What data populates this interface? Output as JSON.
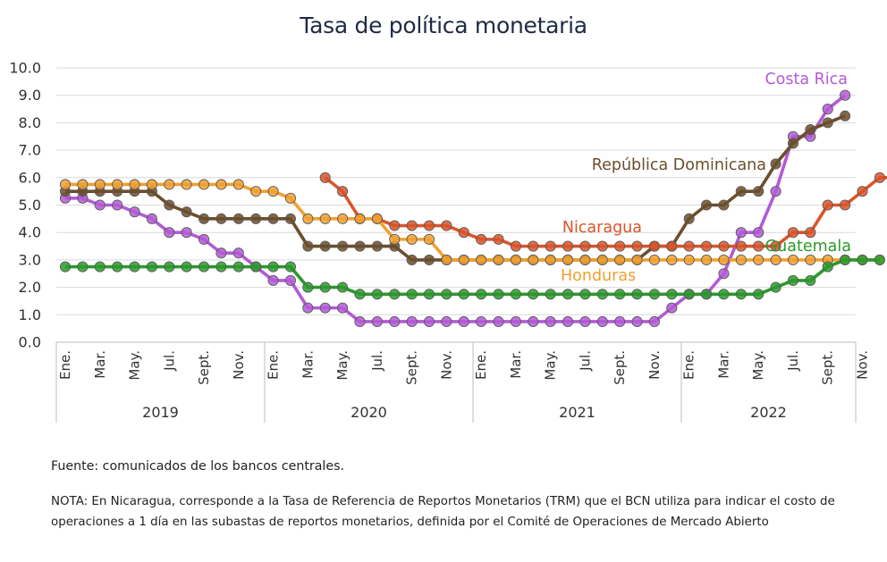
{
  "chart_data": {
    "type": "line",
    "title": "Tasa de política monetaria",
    "y_ticks": [
      "0.0",
      "1.0",
      "2.0",
      "3.0",
      "4.0",
      "5.0",
      "6.0",
      "7.0",
      "8.0",
      "9.0",
      "10.0"
    ],
    "ylim": [
      0,
      10
    ],
    "grid": true,
    "x_month_labels": [
      "Ene.",
      "Mar.",
      "May.",
      "Jul.",
      "Sept.",
      "Nov."
    ],
    "years": [
      "2019",
      "2020",
      "2021",
      "2022"
    ],
    "x_start": "2019-01",
    "x_end": "2022-12",
    "series": [
      {
        "name": "Costa Rica",
        "color": "#b35ad6",
        "label_color": "#b35ad6",
        "start": "2019-01",
        "values": [
          5.25,
          5.25,
          5.0,
          5.0,
          4.75,
          4.5,
          4.0,
          4.0,
          3.75,
          3.25,
          3.25,
          2.75,
          2.25,
          2.25,
          1.25,
          1.25,
          1.25,
          0.75,
          0.75,
          0.75,
          0.75,
          0.75,
          0.75,
          0.75,
          0.75,
          0.75,
          0.75,
          0.75,
          0.75,
          0.75,
          0.75,
          0.75,
          0.75,
          0.75,
          0.75,
          1.25,
          1.75,
          1.75,
          2.5,
          4.0,
          4.0,
          5.5,
          7.5,
          7.5,
          8.5,
          9.0
        ]
      },
      {
        "name": "República Dominicana",
        "color": "#6b4e2a",
        "label_color": "#6b4e2a",
        "start": "2019-01",
        "values": [
          5.5,
          5.5,
          5.5,
          5.5,
          5.5,
          5.5,
          5.0,
          4.75,
          4.5,
          4.5,
          4.5,
          4.5,
          4.5,
          4.5,
          3.5,
          3.5,
          3.5,
          3.5,
          3.5,
          3.5,
          3.0,
          3.0,
          3.0,
          3.0,
          3.0,
          3.0,
          3.0,
          3.0,
          3.0,
          3.0,
          3.0,
          3.0,
          3.0,
          3.0,
          3.5,
          3.5,
          4.5,
          5.0,
          5.0,
          5.5,
          5.5,
          6.5,
          7.25,
          7.75,
          8.0,
          8.25
        ]
      },
      {
        "name": "Nicaragua",
        "color": "#d9552a",
        "label_color": "#d9552a",
        "start": "2020-04",
        "values": [
          6.0,
          5.5,
          4.5,
          4.5,
          4.25,
          4.25,
          4.25,
          4.25,
          4.0,
          3.75,
          3.75,
          3.5,
          3.5,
          3.5,
          3.5,
          3.5,
          3.5,
          3.5,
          3.5,
          3.5,
          3.5,
          3.5,
          3.5,
          3.5,
          3.5,
          3.5,
          3.5,
          4.0,
          4.0,
          5.0,
          5.0,
          5.5,
          6.0,
          6.0
        ]
      },
      {
        "name": "Honduras",
        "color": "#f0a030",
        "label_color": "#f0a030",
        "start": "2019-01",
        "values": [
          5.75,
          5.75,
          5.75,
          5.75,
          5.75,
          5.75,
          5.75,
          5.75,
          5.75,
          5.75,
          5.75,
          5.5,
          5.5,
          5.25,
          4.5,
          4.5,
          4.5,
          4.5,
          4.5,
          3.75,
          3.75,
          3.75,
          3.0,
          3.0,
          3.0,
          3.0,
          3.0,
          3.0,
          3.0,
          3.0,
          3.0,
          3.0,
          3.0,
          3.0,
          3.0,
          3.0,
          3.0,
          3.0,
          3.0,
          3.0,
          3.0,
          3.0,
          3.0,
          3.0,
          3.0,
          3.0,
          3.0,
          3.0
        ]
      },
      {
        "name": "Guatemala",
        "color": "#2a9a2a",
        "label_color": "#2a9a2a",
        "start": "2019-01",
        "values": [
          2.75,
          2.75,
          2.75,
          2.75,
          2.75,
          2.75,
          2.75,
          2.75,
          2.75,
          2.75,
          2.75,
          2.75,
          2.75,
          2.75,
          2.0,
          2.0,
          2.0,
          1.75,
          1.75,
          1.75,
          1.75,
          1.75,
          1.75,
          1.75,
          1.75,
          1.75,
          1.75,
          1.75,
          1.75,
          1.75,
          1.75,
          1.75,
          1.75,
          1.75,
          1.75,
          1.75,
          1.75,
          1.75,
          1.75,
          1.75,
          1.75,
          2.0,
          2.25,
          2.25,
          2.75,
          3.0,
          3.0,
          3.0
        ]
      }
    ]
  },
  "footer": {
    "source": "Fuente: comunicados de los bancos centrales.",
    "note": "NOTA: En Nicaragua, corresponde a la Tasa de Referencia de Reportos Monetarios (TRM) que el BCN utiliza para indicar el costo de operaciones a 1 día en las subastas de reportos monetarios, definida por el Comité de Operaciones de Mercado Abierto"
  }
}
